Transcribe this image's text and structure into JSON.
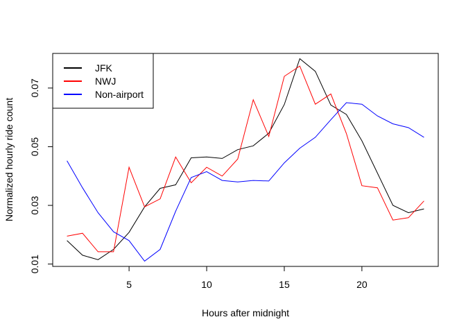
{
  "chart_data": {
    "type": "line",
    "title": "",
    "xlabel": "Hours after midnight",
    "ylabel": "Normalized hourly ride count",
    "xlim": [
      0.08,
      24.92
    ],
    "ylim": [
      0.0092,
      0.0818
    ],
    "xticks": [
      5,
      10,
      15,
      20
    ],
    "yticks": [
      0.01,
      0.03,
      0.05,
      0.07
    ],
    "ytick_labels": [
      "0.01",
      "0.03",
      "0.05",
      "0.07"
    ],
    "grid": false,
    "legend_position": "top-left",
    "x": [
      1,
      2,
      3,
      4,
      5,
      6,
      7,
      8,
      9,
      10,
      11,
      12,
      13,
      14,
      15,
      16,
      17,
      18,
      19,
      20,
      21,
      22,
      23,
      24
    ],
    "series": [
      {
        "name": "JFK",
        "color": "#000000",
        "values": [
          0.018,
          0.013,
          0.0115,
          0.015,
          0.0208,
          0.0295,
          0.0358,
          0.037,
          0.0462,
          0.0465,
          0.046,
          0.049,
          0.0503,
          0.0546,
          0.0644,
          0.08,
          0.0757,
          0.0642,
          0.061,
          0.052,
          0.041,
          0.03,
          0.0275,
          0.0288
        ]
      },
      {
        "name": "NWJ",
        "color": "#ff0000",
        "values": [
          0.0195,
          0.0205,
          0.0142,
          0.0142,
          0.043,
          0.0295,
          0.0322,
          0.0465,
          0.0377,
          0.043,
          0.04,
          0.0458,
          0.066,
          0.0535,
          0.074,
          0.0775,
          0.0645,
          0.068,
          0.0545,
          0.0367,
          0.036,
          0.025,
          0.0258,
          0.0315
        ]
      },
      {
        "name": "Non-airport",
        "color": "#0000ff",
        "values": [
          0.0452,
          0.036,
          0.0275,
          0.021,
          0.018,
          0.011,
          0.015,
          0.028,
          0.0395,
          0.0415,
          0.0385,
          0.038,
          0.0385,
          0.0383,
          0.0445,
          0.0495,
          0.0532,
          0.0592,
          0.065,
          0.0645,
          0.0605,
          0.0578,
          0.0565,
          0.0532
        ]
      }
    ]
  }
}
